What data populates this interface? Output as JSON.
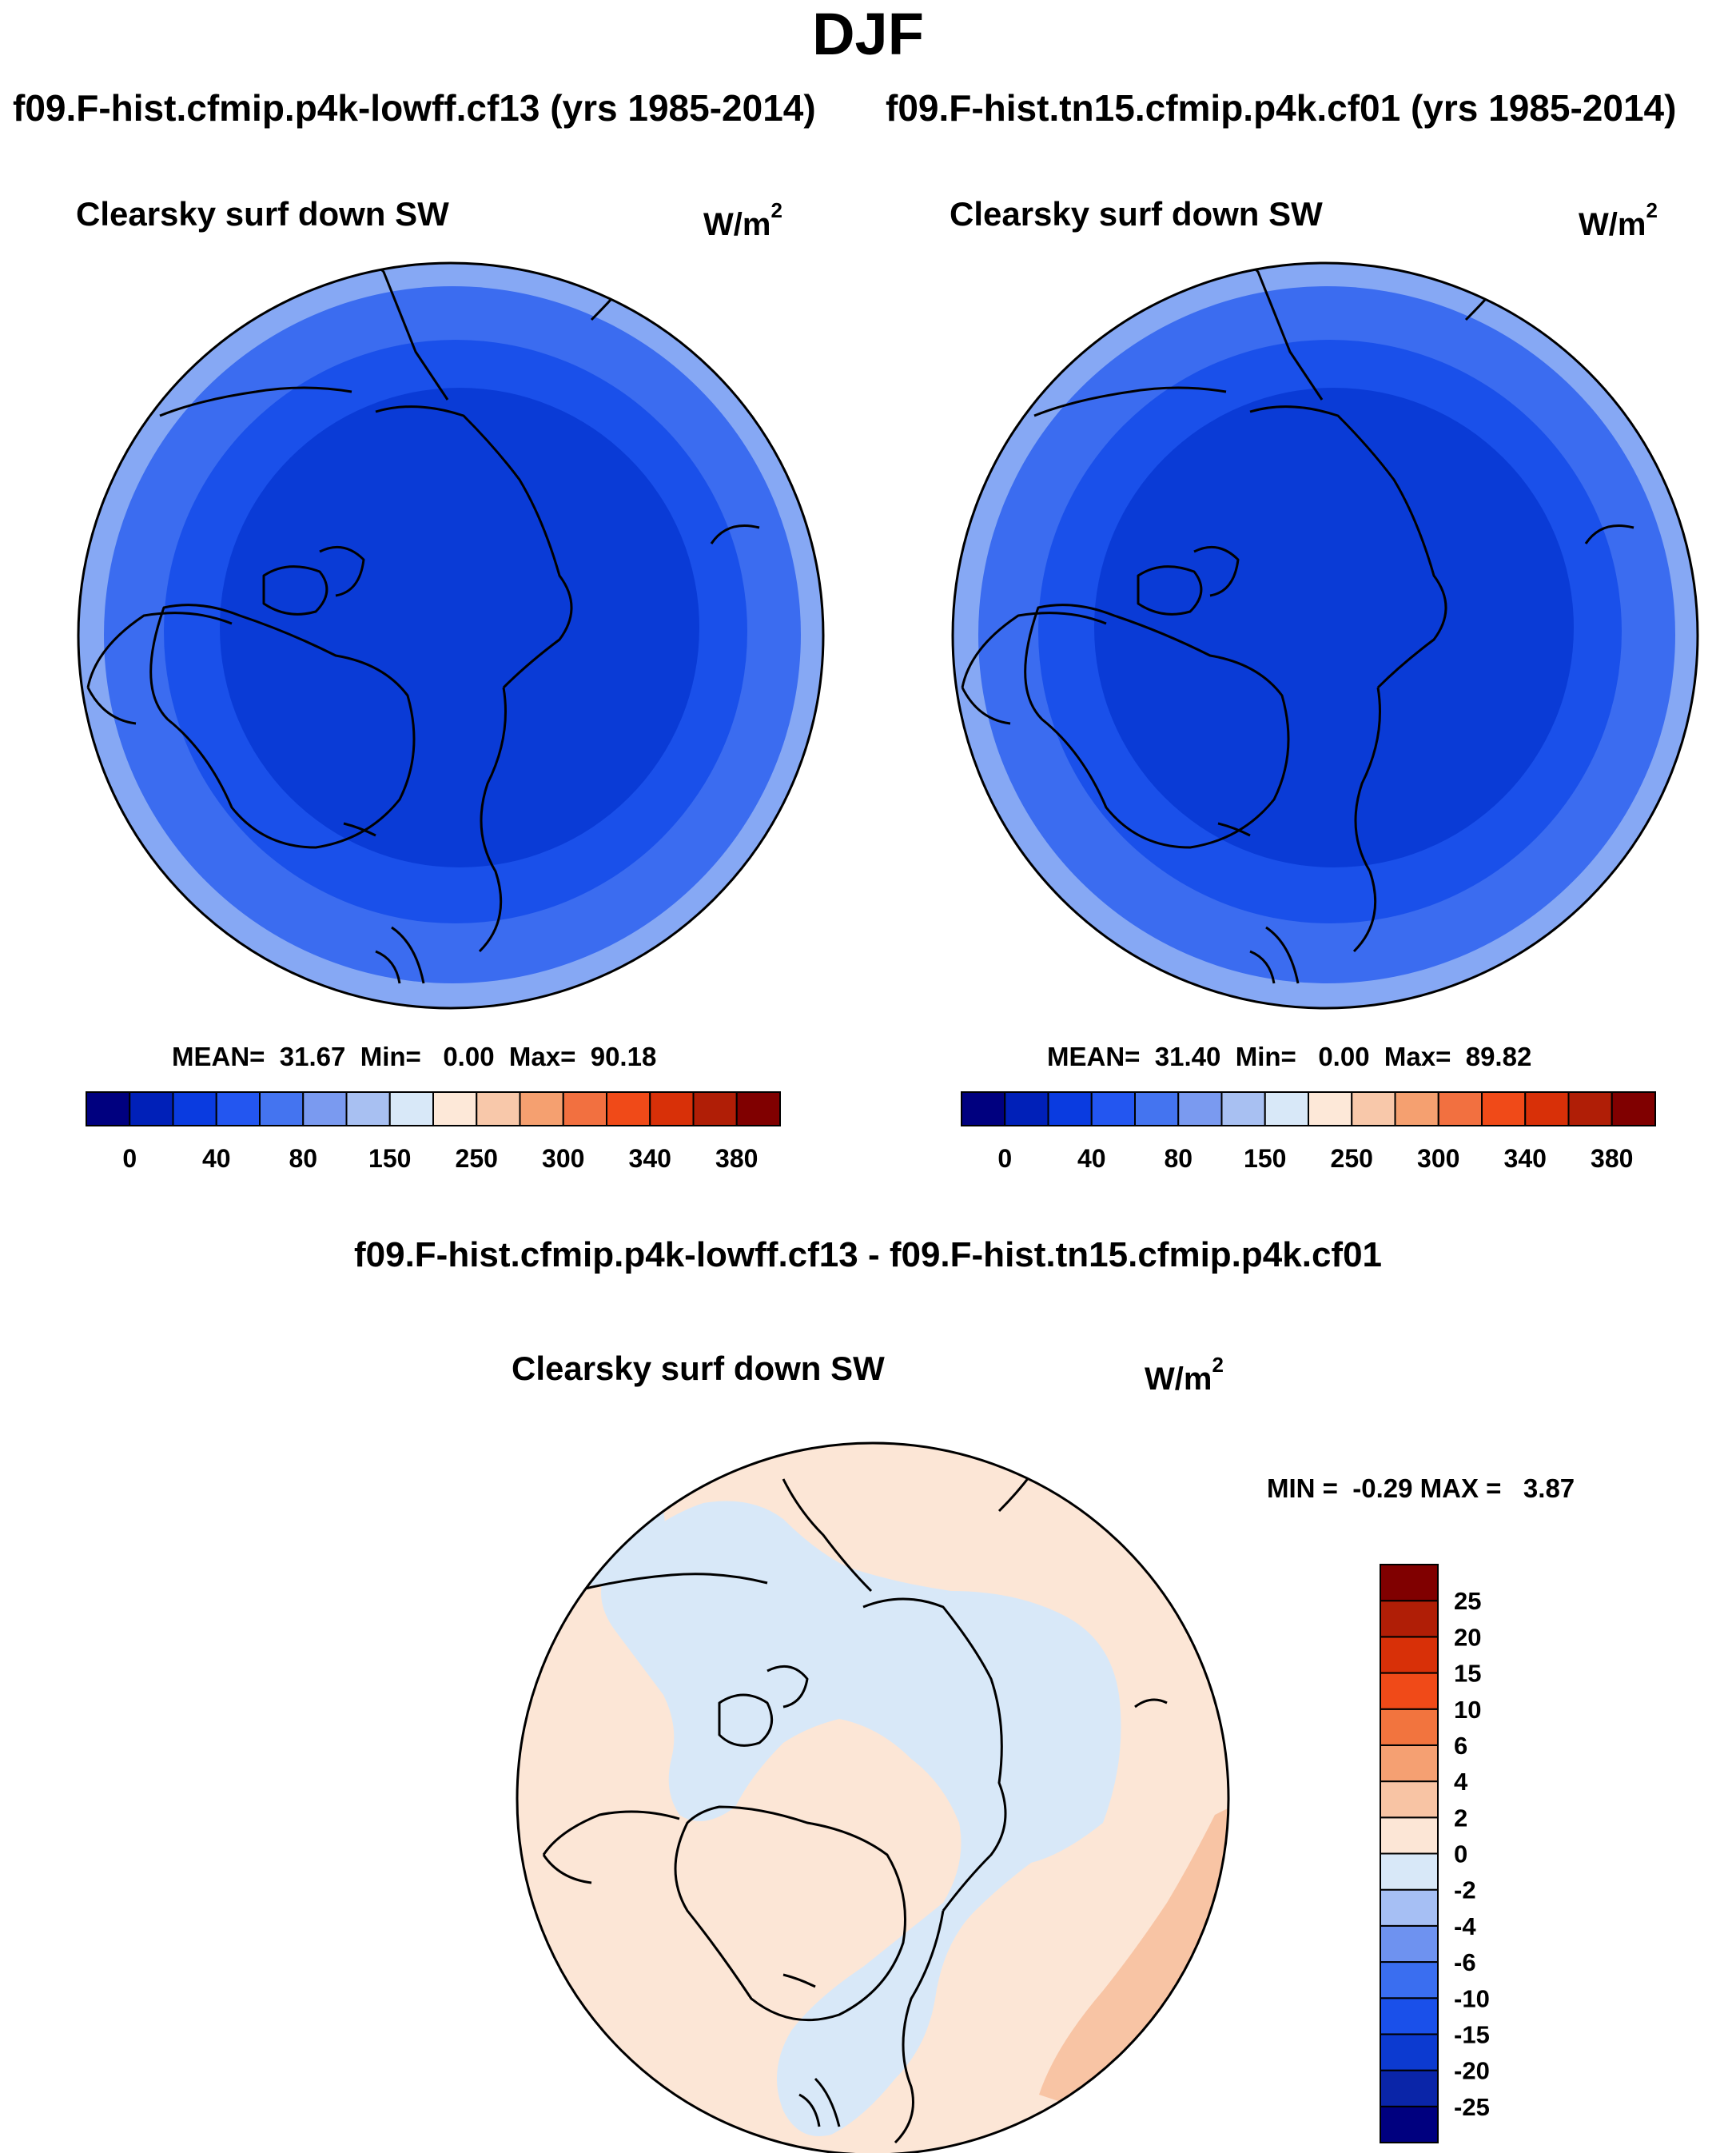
{
  "title": "DJF",
  "panels": [
    {
      "case_label": "f09.F-hist.cfmip.p4k-lowff.cf13 (yrs 1985-2014)",
      "variable": "Clearsky surf down SW",
      "units_base": "W/m",
      "units_exp": "2",
      "stats": {
        "mean_label": "MEAN=",
        "mean": "31.67",
        "min_label": "Min=",
        "min": "0.00",
        "max_label": "Max=",
        "max": "90.18"
      }
    },
    {
      "case_label": "f09.F-hist.tn15.cfmip.p4k.cf01 (yrs 1985-2014)",
      "variable": "Clearsky surf down SW",
      "units_base": "W/m",
      "units_exp": "2",
      "stats": {
        "mean_label": "MEAN=",
        "mean": "31.40",
        "min_label": "Min=",
        "min": "0.00",
        "max_label": "Max=",
        "max": "89.82"
      }
    }
  ],
  "diff_panel": {
    "title": "f09.F-hist.cfmip.p4k-lowff.cf13 - f09.F-hist.tn15.cfmip.p4k.cf01",
    "variable": "Clearsky surf down SW",
    "units_base": "W/m",
    "units_exp": "2",
    "minmax": "MIN =  -0.29 MAX =   3.87"
  },
  "colors": {
    "abs_bar": [
      "#00007f",
      "#0020b8",
      "#0a3be0",
      "#2356f0",
      "#4474f0",
      "#7a9af0",
      "#a8c0f2",
      "#d8e8f8",
      "#fde8d8",
      "#f8c8aa",
      "#f5a070",
      "#f27040",
      "#f04a18",
      "#d83008",
      "#b01e06",
      "#800000"
    ],
    "diff_bar": [
      "#00007f",
      "#0a25a8",
      "#0c3ad0",
      "#1a50ea",
      "#3a6ef0",
      "#6e92f0",
      "#a6bff4",
      "#d8e8f8",
      "#fce6d6",
      "#f8c4a4",
      "#f5a072",
      "#f2743e",
      "#f04a18",
      "#d83008",
      "#b01e06",
      "#800000"
    ],
    "map_outer": "#86a8f4",
    "map_ring2": "#3b6cf0",
    "map_ring3": "#1a50ea",
    "map_core": "#0a3bd6",
    "diff_bg": "#fce6d6",
    "diff_neg": "#d8e8f8",
    "diff_pos": "#f8c4a4"
  },
  "abs_colorbar_labels": [
    "0",
    "40",
    "80",
    "150",
    "250",
    "300",
    "340",
    "380"
  ],
  "diff_colorbar_labels": [
    "25",
    "20",
    "15",
    "10",
    "6",
    "4",
    "2",
    "0",
    "-2",
    "-4",
    "-6",
    "-10",
    "-15",
    "-20",
    "-25"
  ]
}
